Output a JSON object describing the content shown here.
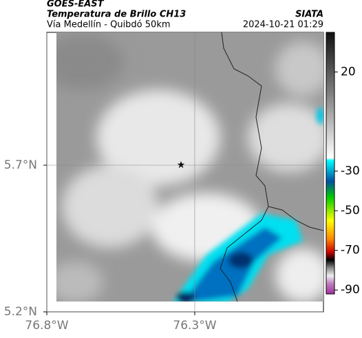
{
  "header": {
    "source": "GOES-EAST",
    "title": "Temperatura de Brillo CH13",
    "subtitle": "Vía Medellín - Quibdó 50km",
    "org": "SIATA",
    "datetime": "2024-10-21 01:29"
  },
  "map": {
    "lat_lim": [
      5.2,
      6.153
    ],
    "lon_lim": [
      -76.8,
      -75.865
    ],
    "lat_ticks": [
      {
        "value": 5.7,
        "label": "5.7°N"
      },
      {
        "value": 5.2,
        "label": "5.2°N"
      }
    ],
    "lon_ticks": [
      {
        "value": -76.8,
        "label": "76.8°W"
      },
      {
        "value": -76.3,
        "label": "76.3°W"
      }
    ]
  },
  "colorbar": {
    "lim": [
      40,
      -92
    ],
    "ticks": [
      20,
      -30,
      -50,
      -70,
      -90
    ]
  }
}
